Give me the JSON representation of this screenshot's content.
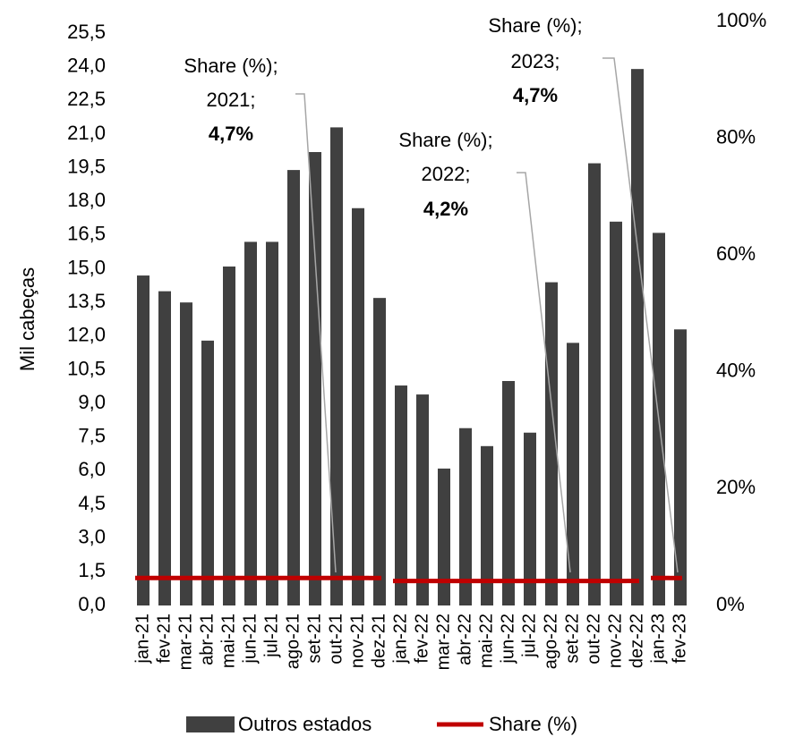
{
  "chart_data": {
    "type": "bar",
    "y_label": "Mil cabeças",
    "categories": [
      "jan-21",
      "fev-21",
      "mar-21",
      "abr-21",
      "mai-21",
      "jun-21",
      "jul-21",
      "ago-21",
      "set-21",
      "out-21",
      "nov-21",
      "dez-21",
      "jan-22",
      "fev-22",
      "mar-22",
      "abr-22",
      "mai-22",
      "jun-22",
      "jul-22",
      "ago-22",
      "set-22",
      "out-22",
      "nov-22",
      "dez-22",
      "jan-23",
      "fev-23"
    ],
    "series": [
      {
        "name": "Outros estados",
        "color": "#404040",
        "type": "bar",
        "values": [
          14.7,
          14.0,
          13.5,
          11.8,
          15.1,
          16.2,
          16.2,
          19.4,
          20.2,
          21.3,
          17.7,
          13.7,
          9.8,
          9.4,
          6.1,
          7.9,
          7.1,
          10.0,
          7.7,
          14.4,
          11.7,
          19.7,
          17.1,
          23.9,
          16.6,
          12.3
        ]
      },
      {
        "name": "Share (%)",
        "color": "#c00000",
        "type": "line",
        "axis": "y2",
        "values": [
          4.7,
          4.7,
          4.7,
          4.7,
          4.7,
          4.7,
          4.7,
          4.7,
          4.7,
          4.7,
          4.7,
          4.7,
          4.2,
          4.2,
          4.2,
          4.2,
          4.2,
          4.2,
          4.2,
          4.2,
          4.2,
          4.2,
          4.2,
          4.2,
          4.7,
          4.7
        ]
      }
    ],
    "ylim": [
      0,
      25.5
    ],
    "yticks": [
      {
        "value": 0,
        "label": "0,0"
      },
      {
        "value": 1.5,
        "label": "1,5"
      },
      {
        "value": 3,
        "label": "3,0"
      },
      {
        "value": 4.5,
        "label": "4,5"
      },
      {
        "value": 6,
        "label": "6,0"
      },
      {
        "value": 7.5,
        "label": "7,5"
      },
      {
        "value": 9,
        "label": "9,0"
      },
      {
        "value": 10.5,
        "label": "10,5"
      },
      {
        "value": 12,
        "label": "12,0"
      },
      {
        "value": 13.5,
        "label": "13,5"
      },
      {
        "value": 15,
        "label": "15,0"
      },
      {
        "value": 16.5,
        "label": "16,5"
      },
      {
        "value": 18,
        "label": "18,0"
      },
      {
        "value": 19.5,
        "label": "19,5"
      },
      {
        "value": 21,
        "label": "21,0"
      },
      {
        "value": 22.5,
        "label": "22,5"
      },
      {
        "value": 24,
        "label": "24,0"
      },
      {
        "value": 25.5,
        "label": "25,5"
      }
    ],
    "y2lim": [
      0,
      100
    ],
    "y2ticks": [
      {
        "value": 0,
        "label": "0%"
      },
      {
        "value": 20,
        "label": "20%"
      },
      {
        "value": 40,
        "label": "40%"
      },
      {
        "value": 60,
        "label": "60%"
      },
      {
        "value": 80,
        "label": "80%"
      },
      {
        "value": 100,
        "label": "100%"
      }
    ],
    "grid": false,
    "legend": "bottom",
    "annotations": [
      {
        "lines": [
          "Share (%);",
          "2021;",
          "4,7%"
        ]
      },
      {
        "lines": [
          "Share (%);",
          "2022;",
          "4,2%"
        ]
      },
      {
        "lines": [
          "Share (%);",
          "2023;",
          "4,7%"
        ]
      }
    ]
  }
}
